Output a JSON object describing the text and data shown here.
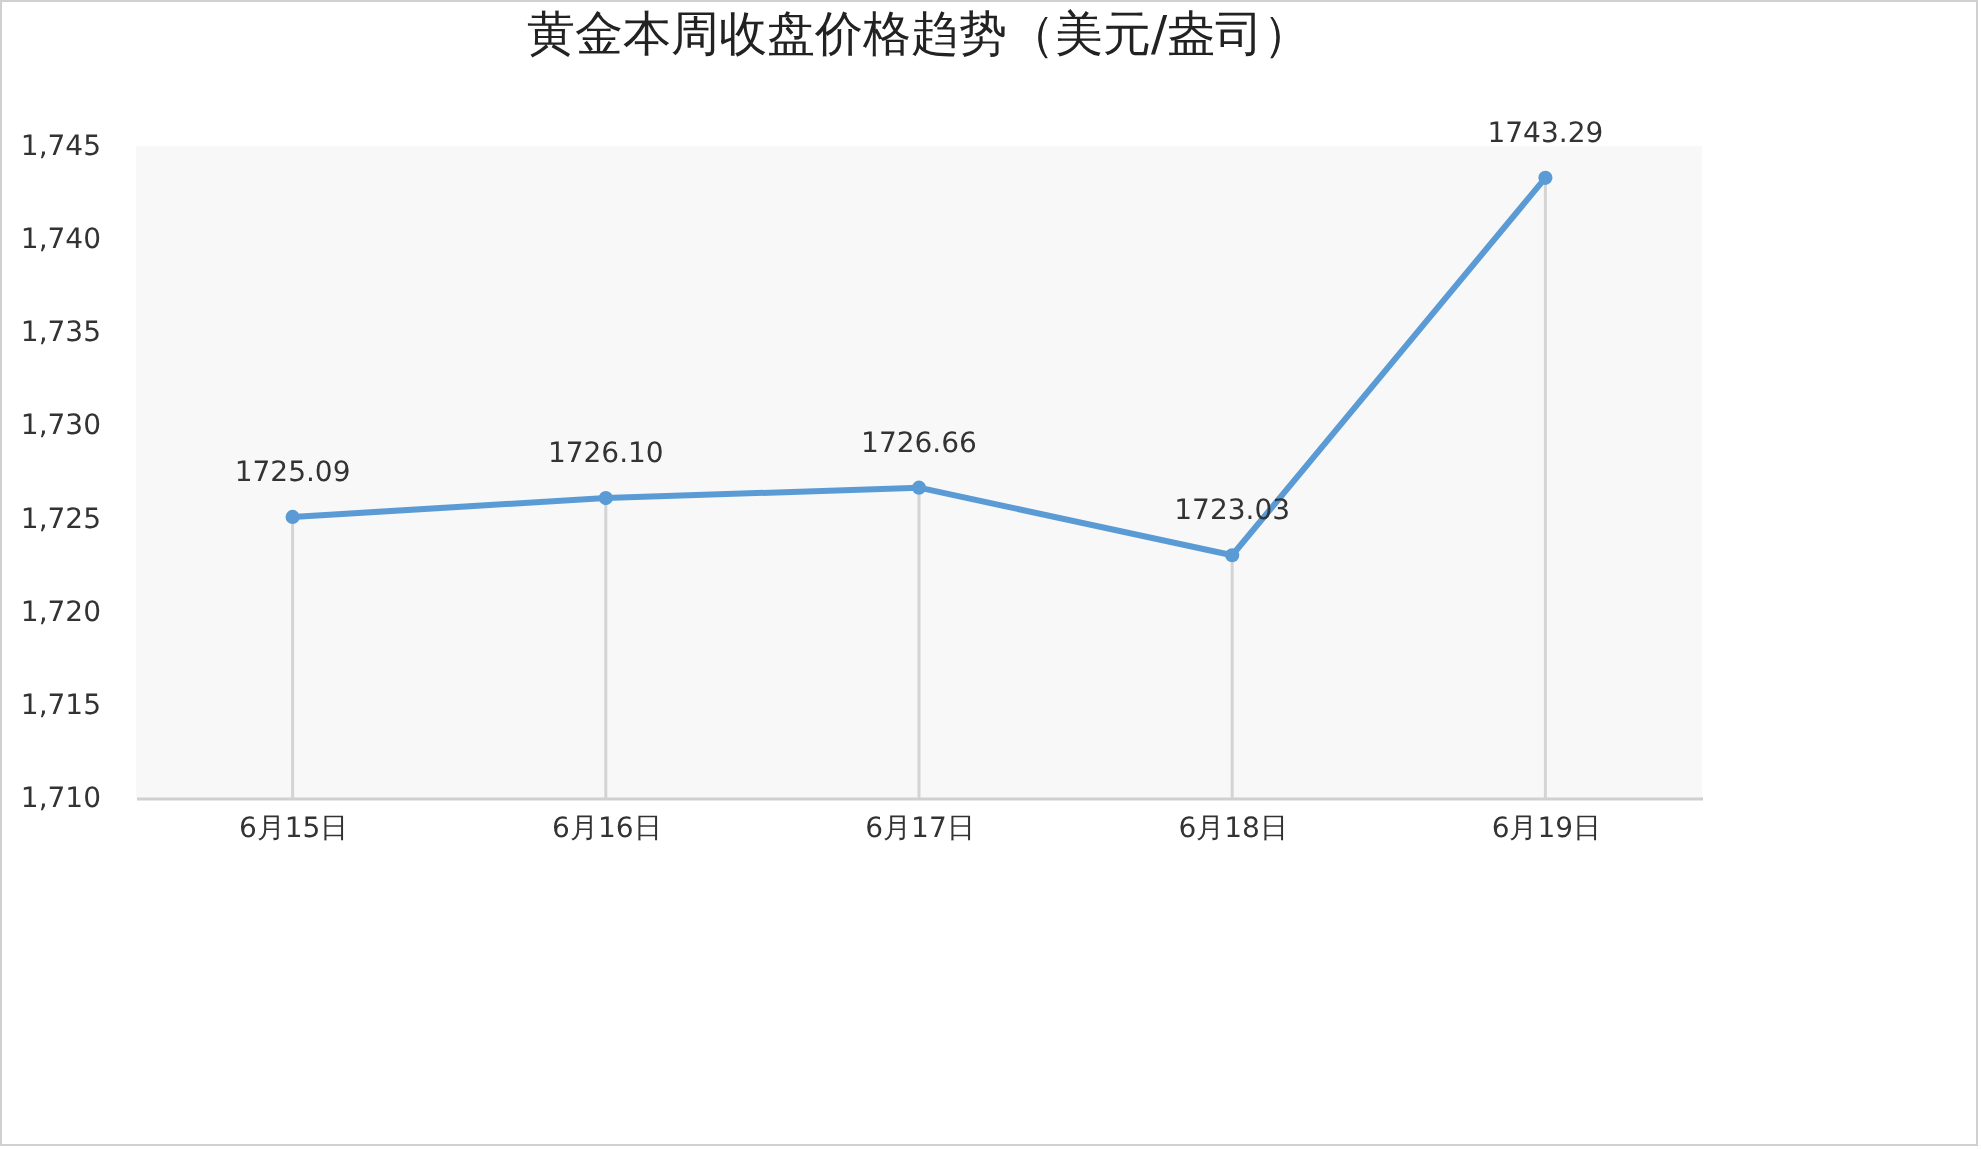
{
  "chart_data": {
    "type": "line",
    "title": "黄金本周收盘价格趋势（美元/盎司）",
    "categories": [
      "6月15日",
      "6月16日",
      "6月17日",
      "6月18日",
      "6月19日"
    ],
    "series": [
      {
        "color": "#5b9bd5",
        "values": [
          1725.09,
          1726.1,
          1726.66,
          1723.03,
          1743.29
        ],
        "value_labels": [
          "1725.09",
          "1726.10",
          "1726.66",
          "1723.03",
          "1743.29"
        ]
      }
    ],
    "ylim": [
      1710,
      1745
    ],
    "yticks": [
      {
        "value": 1710,
        "label": "1,710"
      },
      {
        "value": 1715,
        "label": "1,715"
      },
      {
        "value": 1720,
        "label": "1,720"
      },
      {
        "value": 1725,
        "label": "1,725"
      },
      {
        "value": 1730,
        "label": "1,730"
      },
      {
        "value": 1735,
        "label": "1,735"
      },
      {
        "value": 1740,
        "label": "1,740"
      },
      {
        "value": 1745,
        "label": "1,745"
      }
    ],
    "marker": "circle",
    "line_style": "solid"
  }
}
